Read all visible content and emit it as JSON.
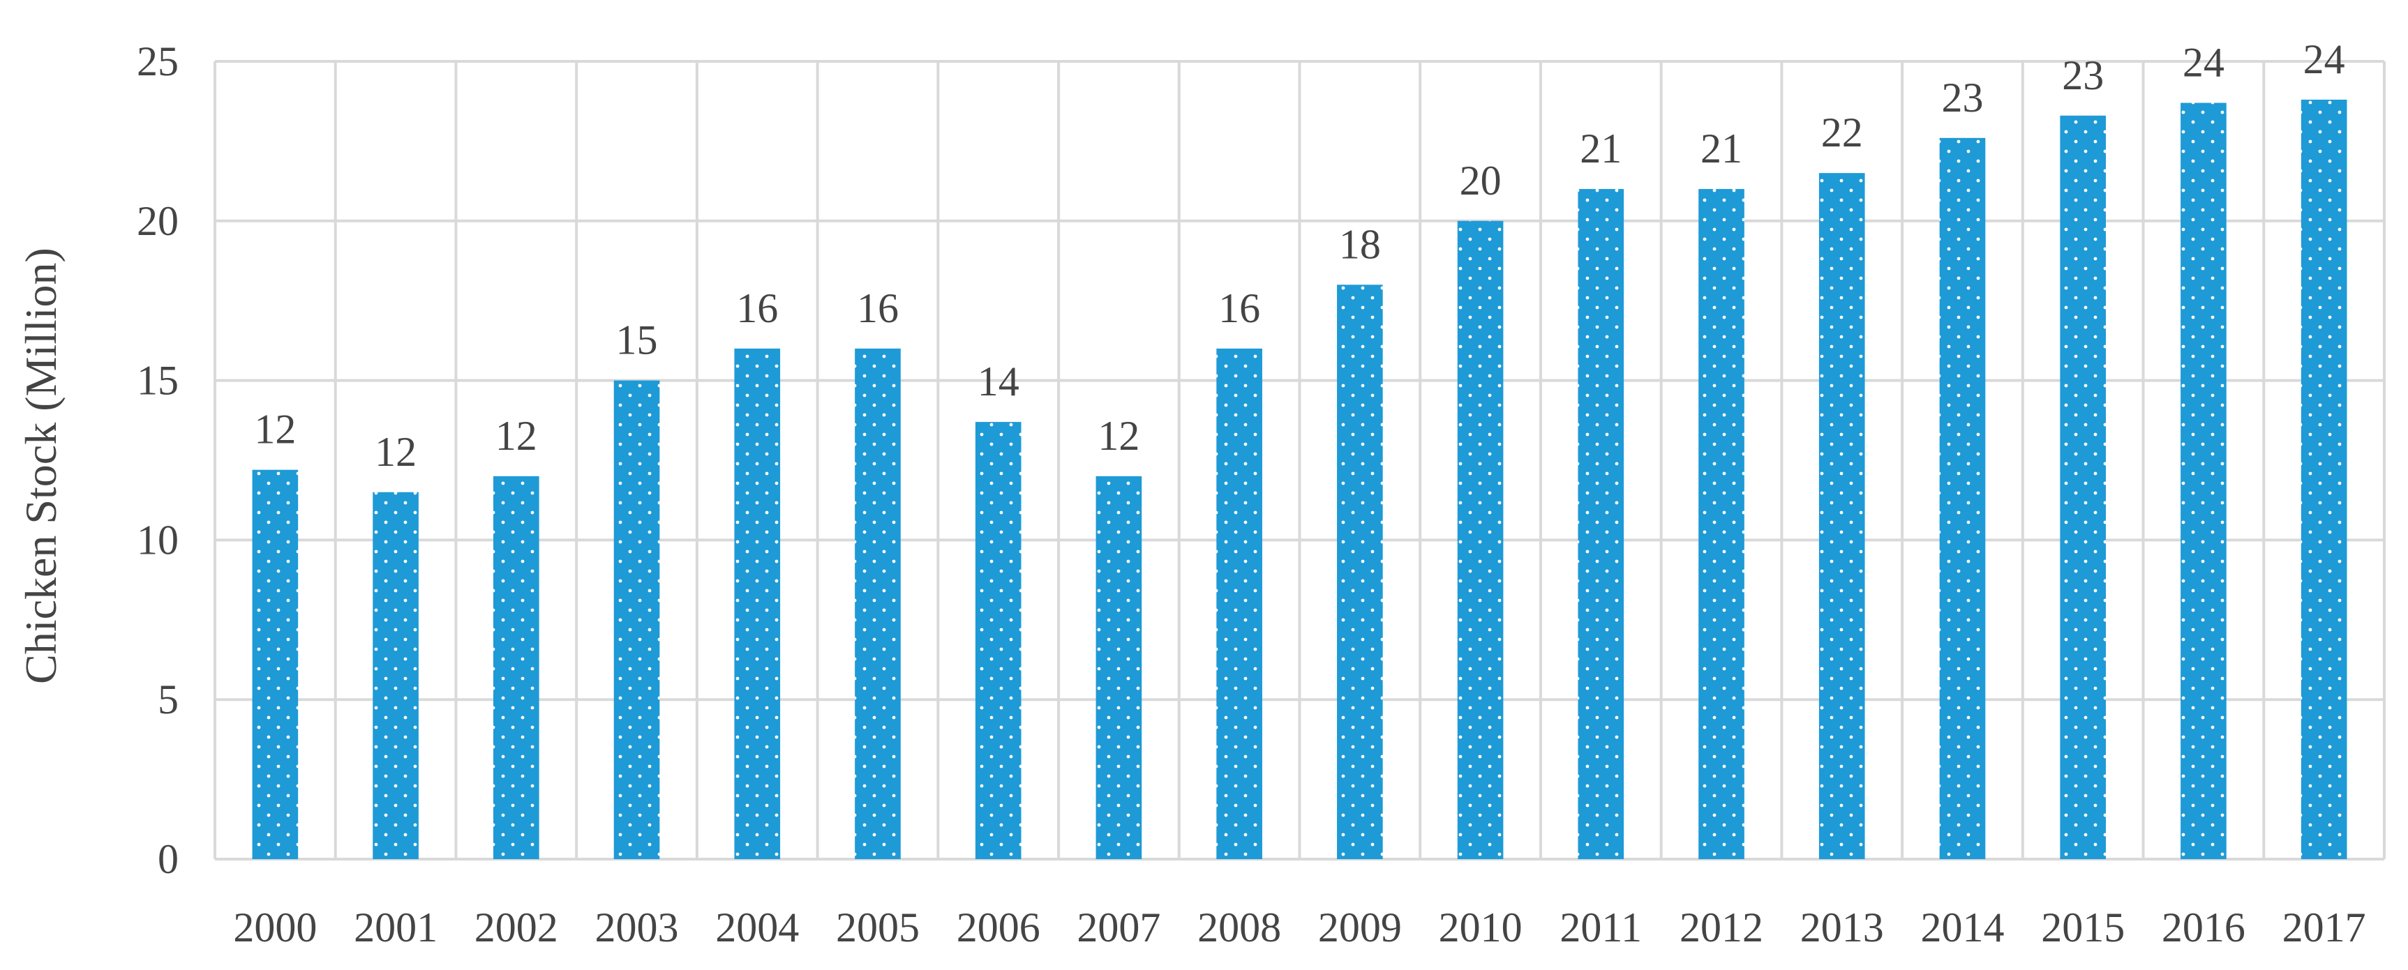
{
  "chart_data": {
    "type": "bar",
    "categories": [
      "2000",
      "2001",
      "2002",
      "2003",
      "2004",
      "2005",
      "2006",
      "2007",
      "2008",
      "2009",
      "2010",
      "2011",
      "2012",
      "2013",
      "2014",
      "2015",
      "2016",
      "2017"
    ],
    "values": [
      12.2,
      11.5,
      12.0,
      15.0,
      16.0,
      16.0,
      13.7,
      12.0,
      16.0,
      18.0,
      20.0,
      21.0,
      21.0,
      21.5,
      22.6,
      23.3,
      23.7,
      23.8
    ],
    "data_labels": [
      "12",
      "12",
      "12",
      "15",
      "16",
      "16",
      "14",
      "12",
      "16",
      "18",
      "20",
      "21",
      "21",
      "22",
      "23",
      "23",
      "24",
      "24"
    ],
    "title": "",
    "xlabel": "",
    "ylabel": "Chicken Stock (Million)",
    "ylim": [
      0,
      25
    ],
    "yticks": [
      0,
      5,
      10,
      15,
      20,
      25
    ],
    "grid": true,
    "bar_color": "#1e9ad6",
    "bar_pattern": "white-dots",
    "grid_color": "#d9d9d9"
  }
}
